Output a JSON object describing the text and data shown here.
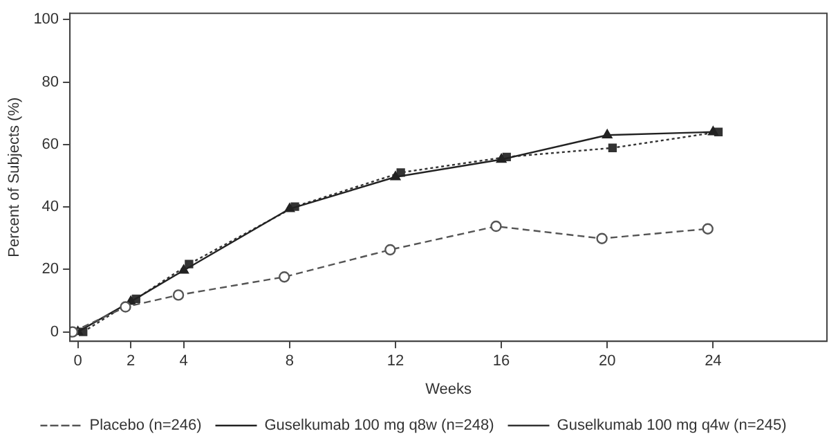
{
  "chart_data": {
    "type": "line",
    "xlabel": "Weeks",
    "ylabel": "Percent of Subjects (%)",
    "xlim": [
      -0.3,
      28.3
    ],
    "xticks": [
      0,
      2,
      4,
      8,
      12,
      16,
      20,
      24
    ],
    "ylim": [
      -3,
      102
    ],
    "yticks": [
      0,
      20,
      40,
      60,
      80,
      100
    ],
    "grid": false,
    "legend": "bottom",
    "series": [
      {
        "name": "Placebo (n=246)",
        "color": "#555555",
        "marker": "circle",
        "line_style": "dashed",
        "x": [
          -0.2,
          1.8,
          3.8,
          7.8,
          11.8,
          15.8,
          19.8,
          23.8
        ],
        "values": [
          0,
          8,
          11.8,
          17.6,
          26.3,
          33.8,
          29.9,
          33
        ]
      },
      {
        "name": "Guselkumab 100 mg q8w (n=248)",
        "color": "#222222",
        "marker": "triangle",
        "line_style": "solid",
        "x": [
          0,
          2,
          4,
          8,
          12,
          16,
          20,
          24
        ],
        "values": [
          0,
          9.7,
          19.7,
          39.4,
          49.6,
          55.2,
          63,
          64
        ]
      },
      {
        "name": "Guselkumab 100 mg q4w (n=245)",
        "color": "#333333",
        "marker": "square",
        "line_style": "dotted",
        "x": [
          0.2,
          2.2,
          4.2,
          8.2,
          12.2,
          16.2,
          20.2,
          24.2
        ],
        "values": [
          0,
          10.6,
          21.7,
          40.1,
          51,
          56,
          58.9,
          64
        ]
      }
    ]
  }
}
